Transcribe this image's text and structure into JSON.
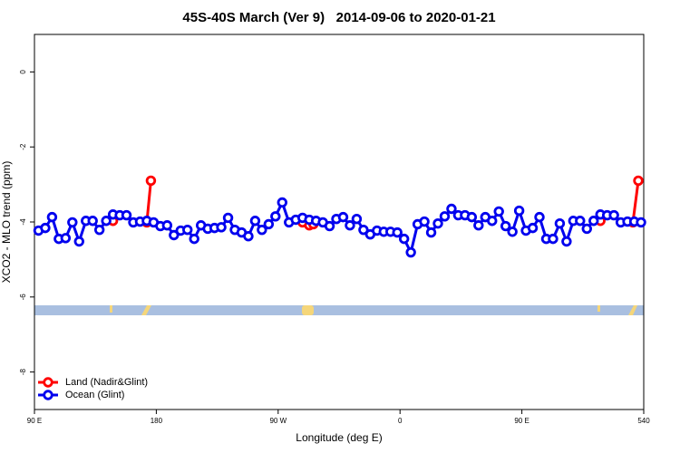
{
  "chart_data": {
    "type": "line",
    "title": "45S-40S March (Ver 9)   2014-09-06 to 2020-01-21",
    "xlabel": "Longitude (deg E)",
    "ylabel": "XCO2 - MLO trend (ppm)",
    "xlim": [
      90,
      540
    ],
    "ylim": [
      -9,
      1
    ],
    "xticks": [
      {
        "value": 90,
        "label": "90 E"
      },
      180,
      {
        "value": 270,
        "label": "90 W"
      },
      {
        "value": 360,
        "label": "0"
      },
      {
        "value": 450,
        "label": "90 E"
      },
      540
    ],
    "yticks": [
      -8,
      -6,
      -4,
      -2,
      0
    ],
    "legend": "bottom-left",
    "series": [
      {
        "name": "Land (Nadir&Glint)",
        "color": "#ff0000",
        "x": [
          148,
          150,
          173,
          176,
          180,
          288,
          293,
          296,
          300,
          508,
          510,
          532,
          536
        ],
        "values": [
          -3.97,
          null,
          -4.01,
          -2.9,
          null,
          -4.01,
          -4.09,
          -4.06,
          null,
          -3.97,
          null,
          -4.01,
          -2.9
        ]
      },
      {
        "name": "Ocean (Glint)",
        "color": "#0000ee",
        "x": [
          93,
          98,
          103,
          108,
          113,
          118,
          123,
          128,
          133,
          138,
          143,
          148,
          153,
          158,
          163,
          168,
          173,
          178,
          183,
          188,
          193,
          198,
          203,
          208,
          213,
          218,
          223,
          228,
          233,
          238,
          243,
          248,
          253,
          258,
          263,
          268,
          273,
          278,
          283,
          288,
          293,
          298,
          303,
          308,
          313,
          318,
          323,
          328,
          333,
          338,
          343,
          348,
          353,
          358,
          363,
          368,
          373,
          378,
          383,
          388,
          393,
          398,
          403,
          408,
          413,
          418,
          423,
          428,
          433,
          438,
          443,
          448,
          453,
          458,
          463,
          468,
          473,
          478,
          483,
          488,
          493,
          498,
          503,
          508,
          513,
          518,
          523,
          528,
          533,
          538
        ],
        "values": [
          -4.23,
          -4.16,
          -3.87,
          -4.45,
          -4.43,
          -4.01,
          -4.52,
          -3.97,
          -3.97,
          -4.21,
          -3.97,
          -3.8,
          -3.82,
          -3.82,
          -4.01,
          -3.99,
          -3.97,
          -4.01,
          -4.11,
          -4.09,
          -4.35,
          -4.23,
          -4.21,
          -4.45,
          -4.09,
          -4.18,
          -4.16,
          -4.14,
          -3.89,
          -4.21,
          -4.28,
          -4.38,
          -3.97,
          -4.21,
          -4.06,
          -3.85,
          -3.48,
          -4.01,
          -3.94,
          -3.89,
          -3.94,
          -3.97,
          -4.01,
          -4.11,
          -3.92,
          -3.87,
          -4.09,
          -3.92,
          -4.21,
          -4.33,
          -4.23,
          -4.26,
          -4.26,
          -4.28,
          -4.45,
          -4.81,
          -4.06,
          -3.99,
          -4.28,
          -4.04,
          -3.85,
          -3.65,
          -3.82,
          -3.82,
          -3.87,
          -4.09,
          -3.87,
          -3.97,
          -3.72,
          -4.11,
          -4.26,
          -3.7,
          -4.23,
          -4.16,
          -3.87,
          -4.45,
          -4.45,
          -4.04,
          -4.52,
          -3.97,
          -3.97,
          -4.18,
          -3.97,
          -3.8,
          -3.82,
          -3.82,
          -4.01,
          -3.99,
          -3.99,
          -4.01
        ]
      }
    ]
  }
}
